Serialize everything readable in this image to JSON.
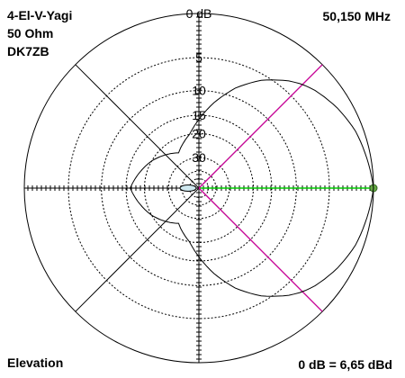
{
  "header": {
    "info_lines": [
      "4-El-V-Yagi",
      "50 Ohm",
      "DK7ZB"
    ],
    "frequency": "50,150 MHz"
  },
  "footer": {
    "plane": "Elevation",
    "reference": "0 dB = 6,65 dBd"
  },
  "colors": {
    "background": "#ffffff",
    "grid": "#000000",
    "pattern": "#000000",
    "azimuth_marker": "#00cc00",
    "elevation_marker": "#cc0099",
    "marker_dot": "#66aa44",
    "minor_lobe_fill": "#cfe8ef"
  },
  "chart_data": {
    "type": "polar",
    "scale": "logarithmic dB",
    "rings": [
      {
        "db": 0,
        "label": "0 dB"
      },
      {
        "db": -5,
        "label": "5"
      },
      {
        "db": -10,
        "label": "10"
      },
      {
        "db": -15,
        "label": "15"
      },
      {
        "db": -20,
        "label": "20"
      },
      {
        "db": -30,
        "label": "30"
      }
    ],
    "spokes_deg": [
      0,
      45,
      90,
      135,
      180,
      225,
      270,
      315
    ],
    "grid": true,
    "pattern": {
      "unit": "dB",
      "angles_deg": [
        0,
        10,
        20,
        30,
        40,
        45,
        50,
        60,
        70,
        80,
        90,
        100,
        120,
        150,
        180,
        210,
        240,
        260,
        270,
        280,
        290,
        300,
        310,
        315,
        320,
        330,
        340,
        350
      ],
      "gain_db": [
        0,
        -0.4,
        -0.8,
        -1.5,
        -2.4,
        -3,
        -3.8,
        -5.8,
        -8.5,
        -12,
        -16,
        -20,
        -25,
        -20,
        -16,
        -20,
        -25,
        -20,
        -16,
        -12,
        -8.5,
        -5.8,
        -3.8,
        -3,
        -2.4,
        -1.5,
        -0.8,
        -0.4
      ]
    },
    "main_lobe_direction_deg": 0,
    "elevation_marker_deg": 45,
    "elevation_marker_mirror_deg": 315
  }
}
